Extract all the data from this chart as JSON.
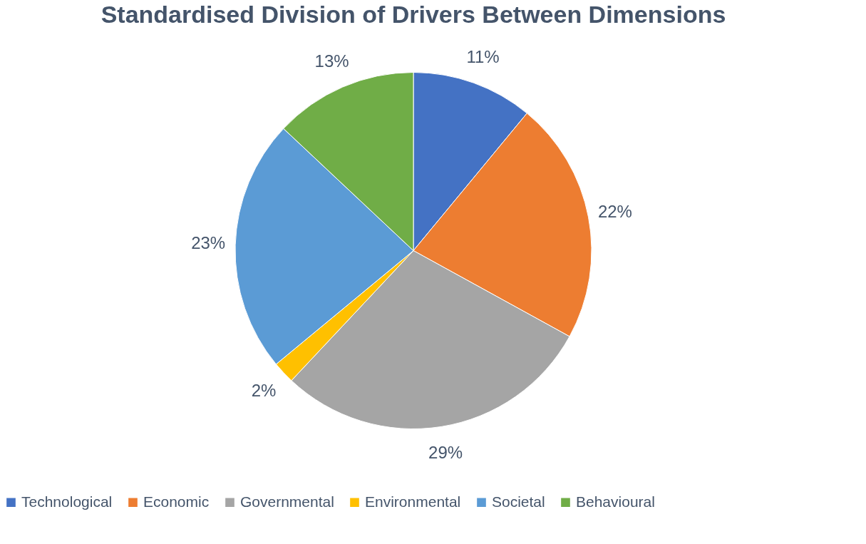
{
  "chart_data": {
    "type": "pie",
    "title": "Standardised Division of Drivers Between Dimensions",
    "categories": [
      "Technological",
      "Economic",
      "Governmental",
      "Environmental",
      "Societal",
      "Behavioural"
    ],
    "values": [
      11,
      22,
      29,
      2,
      23,
      13
    ],
    "value_labels": [
      "11%",
      "22%",
      "29%",
      "2%",
      "23%",
      "13%"
    ],
    "colors": [
      "#4472c4",
      "#ed7d31",
      "#a5a5a5",
      "#ffc000",
      "#5b9bd5",
      "#70ad47"
    ],
    "legend": "bottom"
  }
}
